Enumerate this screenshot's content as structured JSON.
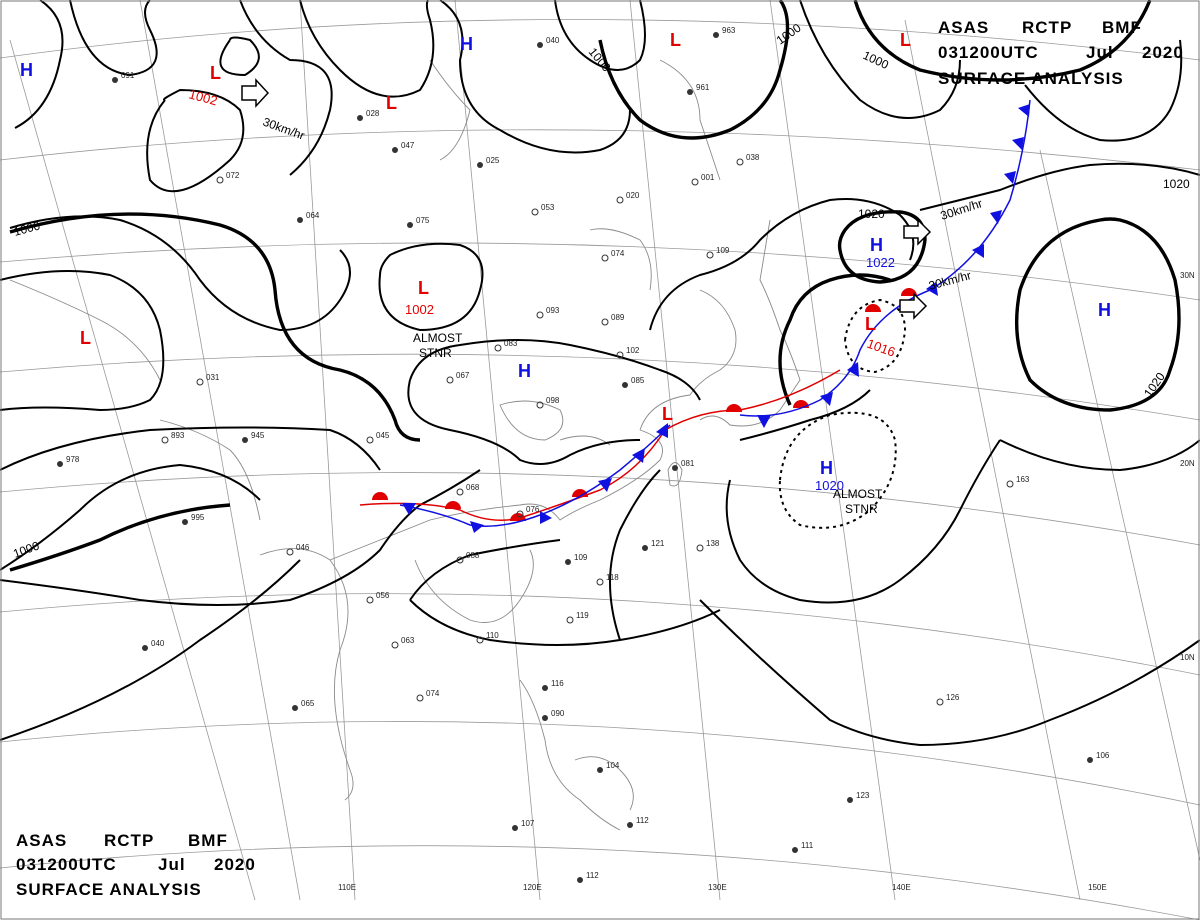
{
  "header": {
    "line1": [
      "ASAS",
      "RCTP",
      "BMF"
    ],
    "line2": [
      "031200UTC",
      "Jul",
      "2020"
    ],
    "line3": "SURFACE ANALYSIS"
  },
  "axis_labels": {
    "lon": [
      "110E",
      "120E",
      "130E",
      "140E",
      "150E"
    ],
    "lat": [
      "30N",
      "20N",
      "10N"
    ]
  },
  "colors": {
    "high": "#1010e0",
    "low": "#e00000",
    "front_cold": "#1010e0",
    "front_warm": "#e00000",
    "isobar": "#000000"
  },
  "isobar_labels": [
    "1000",
    "1000",
    "1000",
    "1000",
    "1000",
    "1020",
    "1020",
    "1020"
  ],
  "highs": [
    {
      "letter": "H",
      "value": ""
    },
    {
      "letter": "H",
      "value": ""
    },
    {
      "letter": "H",
      "value": ""
    },
    {
      "letter": "H",
      "value": "1022"
    },
    {
      "letter": "H",
      "value": "1020"
    },
    {
      "letter": "H",
      "value": ""
    }
  ],
  "lows": [
    {
      "letter": "L",
      "value": "1002"
    },
    {
      "letter": "L",
      "value": ""
    },
    {
      "letter": "L",
      "value": "1002"
    },
    {
      "letter": "L",
      "value": ""
    },
    {
      "letter": "L",
      "value": ""
    },
    {
      "letter": "L",
      "value": "1016"
    },
    {
      "letter": "L",
      "value": ""
    },
    {
      "letter": "L",
      "value": ""
    }
  ],
  "motions": [
    "30km/hr",
    "30km/hr",
    "30km/hr"
  ],
  "stationary_notes": [
    {
      "line1": "ALMOST",
      "line2": "STNR"
    },
    {
      "line1": "ALMOST",
      "line2": "STNR"
    }
  ],
  "stations": [
    "091",
    "028",
    "047",
    "025",
    "072",
    "064",
    "075",
    "093",
    "089",
    "083",
    "067",
    "098",
    "102",
    "085",
    "109",
    "074",
    "053",
    "040",
    "045",
    "031",
    "893",
    "945",
    "978",
    "995",
    "046",
    "068",
    "076",
    "088",
    "081",
    "109",
    "121",
    "138",
    "118",
    "056",
    "063",
    "110",
    "119",
    "040",
    "065",
    "074",
    "116",
    "090",
    "104",
    "107",
    "112",
    "112",
    "123",
    "111",
    "126",
    "163",
    "106",
    "020",
    "038",
    "001",
    "961",
    "963"
  ]
}
